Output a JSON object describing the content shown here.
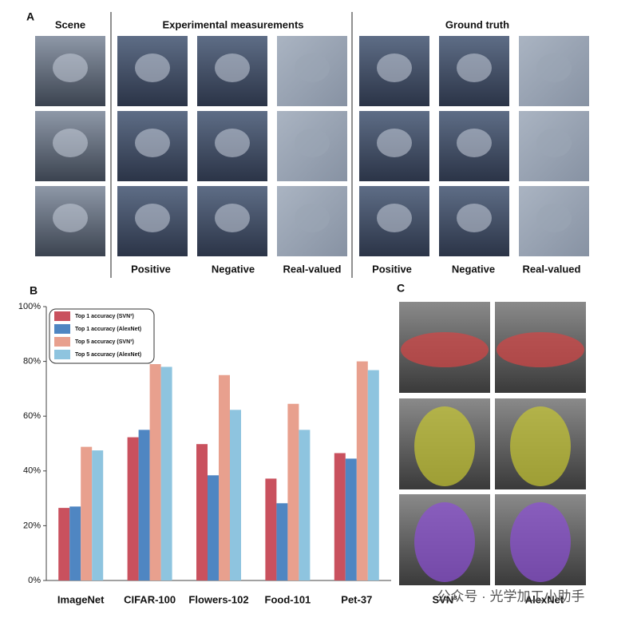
{
  "panel_a": {
    "label": "A",
    "headers": [
      "Scene",
      "Experimental measurements",
      "Ground truth"
    ],
    "column_labels": [
      "Positive",
      "Negative",
      "Real-valued",
      "Positive",
      "Negative",
      "Real-valued"
    ]
  },
  "chart_data": {
    "type": "bar",
    "panel_label": "B",
    "categories": [
      "ImageNet",
      "CIFAR-100",
      "Flowers-102",
      "Food-101",
      "Pet-37"
    ],
    "series": [
      {
        "name": "Top 1 accuracy (SVN³)",
        "color": "#c9515e",
        "values": [
          26.5,
          52.3,
          49.8,
          37.2,
          46.5
        ]
      },
      {
        "name": "Top 1 accuracy (AlexNet)",
        "color": "#4f86c2",
        "values": [
          27,
          55,
          38.4,
          28.2,
          44.5
        ]
      },
      {
        "name": "Top 5 accuracy (SVN³)",
        "color": "#e8a08e",
        "values": [
          48.8,
          79,
          75,
          64.5,
          80
        ]
      },
      {
        "name": "Top 5 accuracy (AlexNet)",
        "color": "#8ec4df",
        "values": [
          47.5,
          78,
          62.3,
          55,
          76.8
        ]
      }
    ],
    "ylim": [
      0,
      100
    ],
    "yticks": [
      {
        "value": 0,
        "label": "0%"
      },
      {
        "value": 20,
        "label": "20%"
      },
      {
        "value": 40,
        "label": "40%"
      },
      {
        "value": 60,
        "label": "60%"
      },
      {
        "value": 80,
        "label": "80%"
      },
      {
        "value": 100,
        "label": "100%"
      }
    ],
    "legend": "upper left"
  },
  "panel_c": {
    "label": "C",
    "column_labels": [
      "SVN³",
      "AlexNet"
    ]
  },
  "watermark": "公众号 · 光学加工小助手"
}
